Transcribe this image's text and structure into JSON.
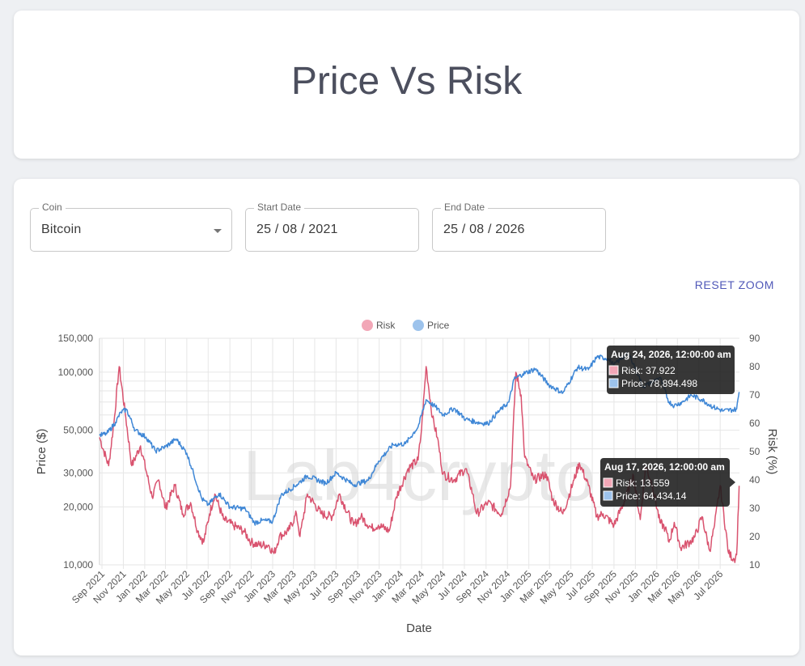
{
  "header": {
    "title": "Price Vs Risk"
  },
  "controls": {
    "coin": {
      "label": "Coin",
      "value": "Bitcoin"
    },
    "start_date": {
      "label": "Start Date",
      "value": "25 / 08 / 2021"
    },
    "end_date": {
      "label": "End Date",
      "value": "25 / 08 / 2026"
    },
    "reset_zoom_label": "RESET ZOOM"
  },
  "watermark": "Lab4crypto",
  "colors": {
    "risk": "#d9536f",
    "price": "#3f87d6",
    "risk_legend": "#f2a7b7",
    "price_legend": "#9dc3ec"
  },
  "chart_data": {
    "type": "line",
    "xlabel": "Date",
    "ylabel_left": "Price ($)",
    "ylabel_right": "Risk (%)",
    "y_left_scale": "log",
    "y_left_range": [
      10000,
      150000
    ],
    "y_left_ticks": [
      "150,000",
      "100,000",
      "50,000",
      "30,000",
      "20,000",
      "10,000"
    ],
    "y_left_tick_values": [
      150000,
      100000,
      50000,
      30000,
      20000,
      10000
    ],
    "y_right_range": [
      10,
      90
    ],
    "y_right_ticks": [
      "90",
      "80",
      "70",
      "60",
      "50",
      "40",
      "30",
      "20",
      "10"
    ],
    "x_range": [
      "2021-08-25",
      "2026-08-25"
    ],
    "x_ticks": [
      "Sep 2021",
      "Nov 2021",
      "Jan 2022",
      "Mar 2022",
      "May 2022",
      "Jul 2022",
      "Sep 2022",
      "Nov 2022",
      "Jan 2023",
      "Mar 2023",
      "May 2023",
      "Jul 2023",
      "Sep 2023",
      "Nov 2023",
      "Jan 2024",
      "Mar 2024",
      "May 2024",
      "Jul 2024",
      "Sep 2024",
      "Nov 2024",
      "Jan 2025",
      "Mar 2025",
      "May 2025",
      "Jul 2025",
      "Sep 2025",
      "Nov 2025",
      "Jan 2026",
      "Mar 2026",
      "May 2026",
      "Jul 2026"
    ],
    "x_tick_dates": [
      "2021-09-01",
      "2021-11-01",
      "2022-01-01",
      "2022-03-01",
      "2022-05-01",
      "2022-07-01",
      "2022-09-01",
      "2022-11-01",
      "2023-01-01",
      "2023-03-01",
      "2023-05-01",
      "2023-07-01",
      "2023-09-01",
      "2023-11-01",
      "2024-01-01",
      "2024-03-01",
      "2024-05-01",
      "2024-07-01",
      "2024-09-01",
      "2024-11-01",
      "2025-01-01",
      "2025-03-01",
      "2025-05-01",
      "2025-07-01",
      "2025-09-01",
      "2025-11-01",
      "2026-01-01",
      "2026-03-01",
      "2026-05-01",
      "2026-07-01"
    ],
    "legend": {
      "position": "top",
      "entries": [
        "Risk",
        "Price"
      ]
    },
    "grid": true,
    "series": [
      {
        "name": "Price",
        "axis": "left",
        "x": [
          "2021-08-25",
          "2021-09-15",
          "2021-10-10",
          "2021-10-25",
          "2021-11-10",
          "2021-12-05",
          "2022-01-05",
          "2022-02-01",
          "2022-03-01",
          "2022-04-01",
          "2022-05-01",
          "2022-05-20",
          "2022-06-13",
          "2022-07-01",
          "2022-08-01",
          "2022-09-01",
          "2022-10-15",
          "2022-11-10",
          "2022-12-01",
          "2023-01-01",
          "2023-01-25",
          "2023-03-10",
          "2023-04-10",
          "2023-06-01",
          "2023-07-01",
          "2023-08-20",
          "2023-10-01",
          "2023-10-30",
          "2023-12-10",
          "2024-01-15",
          "2024-02-20",
          "2024-03-14",
          "2024-04-10",
          "2024-05-01",
          "2024-06-01",
          "2024-07-05",
          "2024-08-05",
          "2024-09-06",
          "2024-10-01",
          "2024-11-05",
          "2024-11-20",
          "2024-12-15",
          "2025-01-20",
          "2025-02-27",
          "2025-04-08",
          "2025-05-20",
          "2025-06-20",
          "2025-07-14",
          "2025-08-14",
          "2025-09-01",
          "2025-10-06",
          "2025-10-20",
          "2025-11-10",
          "2025-11-22",
          "2025-12-15",
          "2026-01-10",
          "2026-02-05",
          "2026-02-20",
          "2026-03-15",
          "2026-04-10",
          "2026-05-10",
          "2026-06-10",
          "2026-07-10",
          "2026-08-10",
          "2026-08-17",
          "2026-08-24"
        ],
        "y": [
          47000,
          48000,
          55000,
          62000,
          64000,
          50000,
          46000,
          39000,
          41000,
          45000,
          38000,
          30000,
          22000,
          20500,
          23500,
          20000,
          19500,
          16500,
          17000,
          16800,
          23000,
          26000,
          29000,
          26500,
          30000,
          26000,
          27500,
          34500,
          42000,
          42500,
          52000,
          72000,
          66000,
          60000,
          65000,
          57000,
          55000,
          54000,
          61000,
          70000,
          92000,
          98000,
          104000,
          86000,
          78000,
          106000,
          103000,
          120000,
          118000,
          109000,
          124000,
          118000,
          96000,
          84000,
          88000,
          94000,
          70000,
          67000,
          70000,
          76000,
          72000,
          66000,
          63000,
          64000,
          64434,
          78894
        ]
      },
      {
        "name": "Risk",
        "axis": "right",
        "x": [
          "2021-08-25",
          "2021-09-20",
          "2021-10-05",
          "2021-10-20",
          "2021-11-08",
          "2021-11-25",
          "2021-12-20",
          "2022-01-22",
          "2022-02-10",
          "2022-03-01",
          "2022-03-28",
          "2022-04-20",
          "2022-05-12",
          "2022-06-01",
          "2022-06-18",
          "2022-07-05",
          "2022-07-20",
          "2022-08-14",
          "2022-09-10",
          "2022-10-10",
          "2022-11-01",
          "2022-11-20",
          "2022-12-20",
          "2023-01-05",
          "2023-01-20",
          "2023-02-15",
          "2023-03-10",
          "2023-03-20",
          "2023-04-10",
          "2023-05-20",
          "2023-06-20",
          "2023-07-10",
          "2023-08-20",
          "2023-09-10",
          "2023-10-10",
          "2023-10-30",
          "2023-11-30",
          "2023-12-20",
          "2024-01-23",
          "2024-02-20",
          "2024-03-01",
          "2024-03-14",
          "2024-04-01",
          "2024-04-15",
          "2024-05-01",
          "2024-06-01",
          "2024-07-05",
          "2024-07-25",
          "2024-08-05",
          "2024-09-06",
          "2024-10-15",
          "2024-11-10",
          "2024-11-25",
          "2024-12-10",
          "2024-12-20",
          "2025-01-15",
          "2025-02-20",
          "2025-03-10",
          "2025-04-08",
          "2025-05-10",
          "2025-05-25",
          "2025-06-20",
          "2025-07-14",
          "2025-08-01",
          "2025-09-01",
          "2025-10-06",
          "2025-10-25",
          "2025-11-15",
          "2025-11-30",
          "2025-12-20",
          "2026-01-10",
          "2026-01-25",
          "2026-02-05",
          "2026-02-20",
          "2026-03-10",
          "2026-04-05",
          "2026-04-20",
          "2026-05-10",
          "2026-06-01",
          "2026-06-15",
          "2026-07-01",
          "2026-07-25",
          "2026-08-10",
          "2026-08-17",
          "2026-08-24"
        ],
        "y": [
          55,
          45,
          60,
          80,
          62,
          45,
          52,
          34,
          40,
          30,
          38,
          28,
          32,
          22,
          18,
          28,
          35,
          26,
          24,
          22,
          18,
          17,
          17,
          14,
          20,
          22,
          28,
          20,
          35,
          28,
          27,
          35,
          24,
          27,
          23,
          24,
          22,
          34,
          44,
          47,
          58,
          80,
          62,
          55,
          42,
          40,
          44,
          35,
          28,
          32,
          28,
          38,
          78,
          70,
          48,
          40,
          42,
          33,
          28,
          40,
          46,
          38,
          27,
          28,
          24,
          34,
          42,
          26,
          45,
          38,
          25,
          23,
          18,
          25,
          16,
          18,
          20,
          27,
          15,
          24,
          38,
          14,
          12,
          13.559,
          37.922
        ]
      }
    ],
    "tooltips": [
      {
        "title": "Aug 24, 2026, 12:00:00 am",
        "risk": "Risk: 37.922",
        "price": "Price: 78,894.498"
      },
      {
        "title": "Aug 17, 2026, 12:00:00 am",
        "risk": "Risk: 13.559",
        "price": "Price: 64,434.14"
      }
    ]
  }
}
